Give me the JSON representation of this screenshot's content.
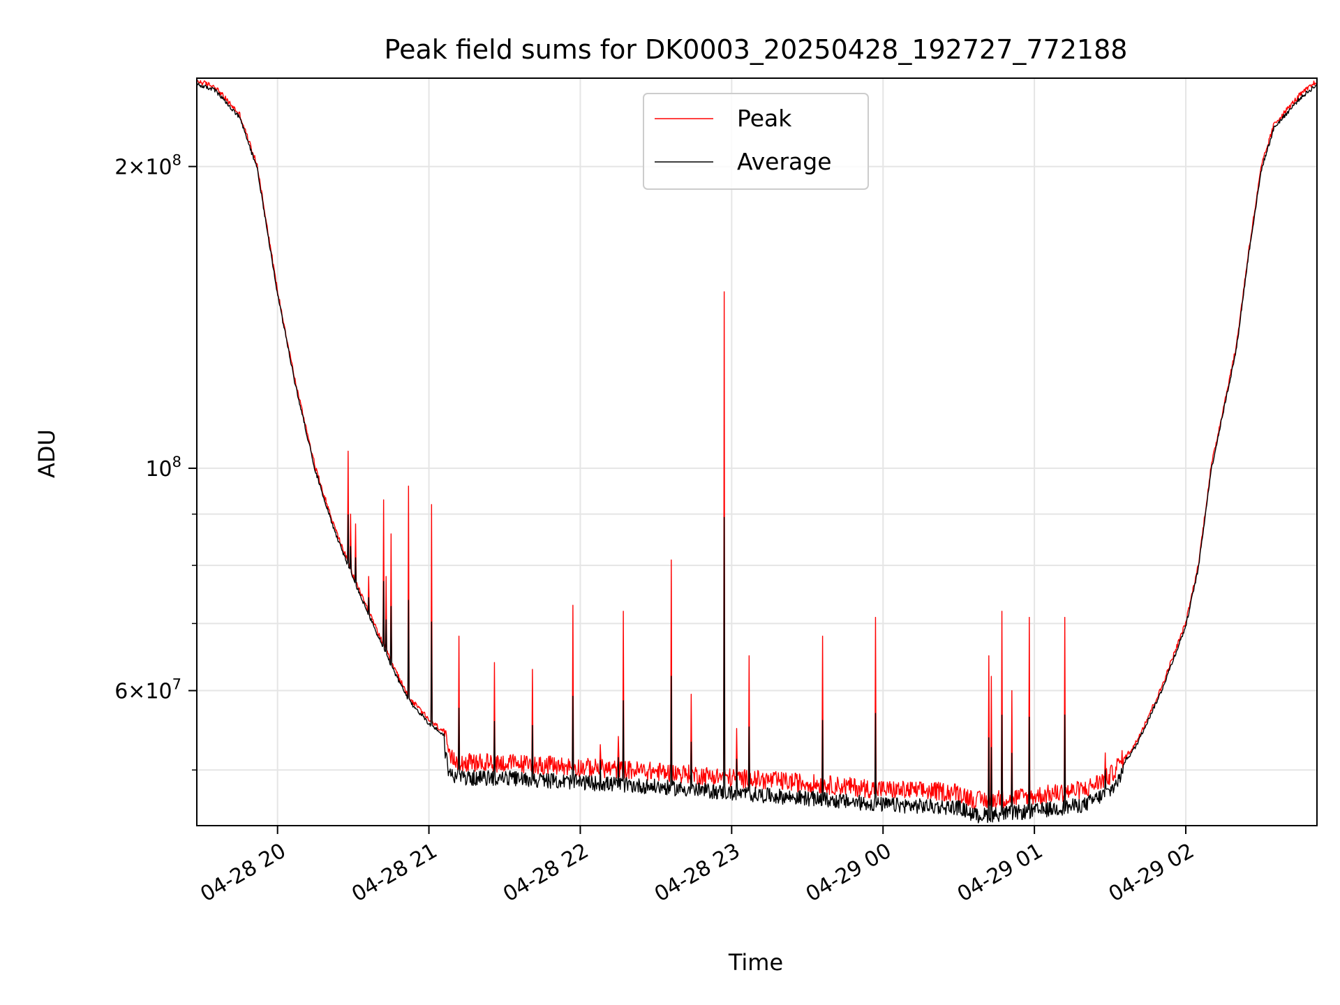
{
  "chart_data": {
    "type": "line",
    "title": "Peak field sums for DK0003_20250428_192727_772188",
    "xlabel": "Time",
    "ylabel": "ADU",
    "x_range": [
      "2025-04-28 19:28",
      "2025-04-29 02:52"
    ],
    "x_ticks": [
      {
        "value": "2025-04-28 20:00",
        "label": "04-28 20"
      },
      {
        "value": "2025-04-28 21:00",
        "label": "04-28 21"
      },
      {
        "value": "2025-04-28 22:00",
        "label": "04-28 22"
      },
      {
        "value": "2025-04-28 23:00",
        "label": "04-28 23"
      },
      {
        "value": "2025-04-29 00:00",
        "label": "04-29 00"
      },
      {
        "value": "2025-04-29 01:00",
        "label": "04-29 01"
      },
      {
        "value": "2025-04-29 02:00",
        "label": "04-29 02"
      }
    ],
    "y_scale": "log",
    "ylim": [
      44000000,
      245000000
    ],
    "y_ticks_major": [
      {
        "value": 60000000,
        "base": "6",
        "exp": "7"
      },
      {
        "value": 100000000,
        "base": "",
        "exp": "8"
      },
      {
        "value": 200000000,
        "base": "2",
        "exp": "8"
      }
    ],
    "y_ticks_minor": [
      50000000,
      70000000,
      80000000,
      90000000
    ],
    "grid": true,
    "legend_position": "upper center",
    "series": [
      {
        "name": "Peak",
        "color": "#ff0000",
        "baseline": [
          [
            "2025-04-28 19:28",
            243000000
          ],
          [
            "2025-04-28 19:35",
            240000000
          ],
          [
            "2025-04-28 19:45",
            225000000
          ],
          [
            "2025-04-28 19:52",
            200000000
          ],
          [
            "2025-04-28 20:00",
            150000000
          ],
          [
            "2025-04-28 20:07",
            122000000
          ],
          [
            "2025-04-28 20:15",
            100000000
          ],
          [
            "2025-04-28 20:22",
            88000000
          ],
          [
            "2025-04-28 20:30",
            78000000
          ],
          [
            "2025-04-28 20:37",
            71000000
          ],
          [
            "2025-04-28 20:45",
            64000000
          ],
          [
            "2025-04-28 20:52",
            59000000
          ],
          [
            "2025-04-28 21:00",
            56000000
          ],
          [
            "2025-04-28 21:06",
            54500000
          ],
          [
            "2025-04-28 21:08",
            51000000
          ],
          [
            "2025-04-28 21:15",
            50500000
          ],
          [
            "2025-04-28 21:30",
            50500000
          ],
          [
            "2025-04-28 22:00",
            50000000
          ],
          [
            "2025-04-28 22:30",
            49500000
          ],
          [
            "2025-04-28 23:00",
            48800000
          ],
          [
            "2025-04-28 23:30",
            48200000
          ],
          [
            "2025-04-29 00:00",
            47500000
          ],
          [
            "2025-04-29 00:30",
            47200000
          ],
          [
            "2025-04-29 00:37",
            46300000
          ],
          [
            "2025-04-29 01:00",
            46800000
          ],
          [
            "2025-04-29 01:20",
            47500000
          ],
          [
            "2025-04-29 01:30",
            49000000
          ],
          [
            "2025-04-29 01:40",
            53000000
          ],
          [
            "2025-04-29 01:50",
            60000000
          ],
          [
            "2025-04-29 02:00",
            70000000
          ],
          [
            "2025-04-29 02:05",
            80000000
          ],
          [
            "2025-04-29 02:10",
            100000000
          ],
          [
            "2025-04-29 02:15",
            115000000
          ],
          [
            "2025-04-29 02:20",
            132000000
          ],
          [
            "2025-04-29 02:25",
            165000000
          ],
          [
            "2025-04-29 02:30",
            200000000
          ],
          [
            "2025-04-29 02:35",
            220000000
          ],
          [
            "2025-04-29 02:45",
            235000000
          ],
          [
            "2025-04-29 02:52",
            243000000
          ]
        ],
        "spikes": [
          [
            "2025-04-28 20:28",
            104000000
          ],
          [
            "2025-04-28 20:29",
            90000000
          ],
          [
            "2025-04-28 20:31",
            88000000
          ],
          [
            "2025-04-28 20:36",
            78000000
          ],
          [
            "2025-04-28 20:42",
            93000000
          ],
          [
            "2025-04-28 20:43",
            78000000
          ],
          [
            "2025-04-28 20:45",
            86000000
          ],
          [
            "2025-04-28 20:52",
            96000000
          ],
          [
            "2025-04-28 21:01",
            92000000
          ],
          [
            "2025-04-28 21:12",
            68000000
          ],
          [
            "2025-04-28 21:26",
            64000000
          ],
          [
            "2025-04-28 21:41",
            63000000
          ],
          [
            "2025-04-28 21:57",
            73000000
          ],
          [
            "2025-04-28 22:08",
            53000000
          ],
          [
            "2025-04-28 22:15",
            54000000
          ],
          [
            "2025-04-28 22:17",
            72000000
          ],
          [
            "2025-04-28 22:36",
            81000000
          ],
          [
            "2025-04-28 22:44",
            59500000
          ],
          [
            "2025-04-28 22:57",
            150000000
          ],
          [
            "2025-04-28 23:02",
            55000000
          ],
          [
            "2025-04-28 23:07",
            65000000
          ],
          [
            "2025-04-28 23:36",
            68000000
          ],
          [
            "2025-04-28 23:57",
            71000000
          ],
          [
            "2025-04-28 00:23",
            52000000
          ],
          [
            "2025-04-29 00:42",
            65000000
          ],
          [
            "2025-04-29 00:47",
            72000000
          ],
          [
            "2025-04-29 00:58",
            71000000
          ],
          [
            "2025-04-29 00:43",
            62000000
          ],
          [
            "2025-04-29 00:51",
            60000000
          ],
          [
            "2025-04-29 01:12",
            71000000
          ],
          [
            "2025-04-29 01:28",
            52000000
          ]
        ]
      },
      {
        "name": "Average",
        "color": "#000000"
      }
    ]
  }
}
